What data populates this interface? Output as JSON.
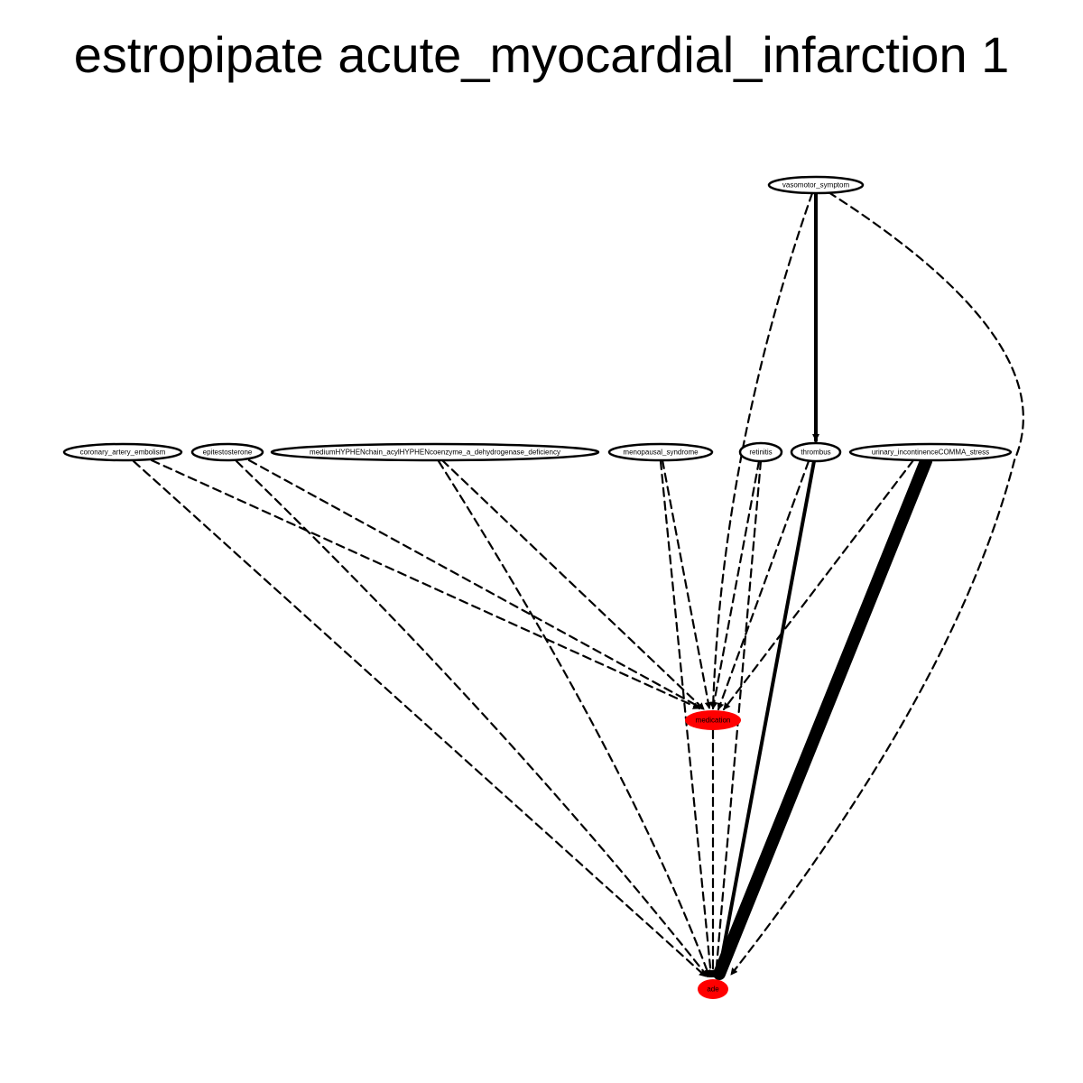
{
  "title": "estropipate acute_myocardial_infarction 1",
  "colors": {
    "outcome_fill": "#ff0000",
    "node_fill": "#ffffff",
    "edge": "#000000"
  },
  "nodes": [
    {
      "id": "vasomotor_symptom",
      "label": "vasomotor_symptom",
      "role": "covariate"
    },
    {
      "id": "coronary_artery_embolism",
      "label": "coronary_artery_embolism",
      "role": "covariate"
    },
    {
      "id": "epitestosterone",
      "label": "epitestosterone",
      "role": "covariate"
    },
    {
      "id": "mcad",
      "label": "mediumHYPHENchain_acylHYPHENcoenzyme_a_dehydrogenase_deficiency",
      "role": "covariate"
    },
    {
      "id": "menopausal_syndrome",
      "label": "menopausal_syndrome",
      "role": "covariate"
    },
    {
      "id": "retinitis",
      "label": "retinitis",
      "role": "covariate"
    },
    {
      "id": "thrombus",
      "label": "thrombus",
      "role": "covariate"
    },
    {
      "id": "urinary_incontinence",
      "label": "urinary_incontinenceCOMMA_stress",
      "role": "covariate"
    },
    {
      "id": "medication",
      "label": "medication",
      "role": "highlighted"
    },
    {
      "id": "ade",
      "label": "ade",
      "role": "highlighted"
    }
  ],
  "edges": [
    {
      "from": "vasomotor_symptom",
      "to": "thrombus",
      "style": "solid",
      "weight": 3
    },
    {
      "from": "vasomotor_symptom",
      "to": "medication",
      "style": "dashed",
      "weight": 1
    },
    {
      "from": "vasomotor_symptom",
      "to": "ade",
      "style": "dashed",
      "weight": 1
    },
    {
      "from": "coronary_artery_embolism",
      "to": "medication",
      "style": "dashed",
      "weight": 1
    },
    {
      "from": "coronary_artery_embolism",
      "to": "ade",
      "style": "dashed",
      "weight": 1
    },
    {
      "from": "epitestosterone",
      "to": "medication",
      "style": "dashed",
      "weight": 1
    },
    {
      "from": "epitestosterone",
      "to": "ade",
      "style": "dashed",
      "weight": 1
    },
    {
      "from": "mcad",
      "to": "medication",
      "style": "dashed",
      "weight": 1
    },
    {
      "from": "mcad",
      "to": "ade",
      "style": "dashed",
      "weight": 1
    },
    {
      "from": "menopausal_syndrome",
      "to": "medication",
      "style": "dashed",
      "weight": 1
    },
    {
      "from": "menopausal_syndrome",
      "to": "ade",
      "style": "dashed",
      "weight": 1
    },
    {
      "from": "retinitis",
      "to": "medication",
      "style": "dashed",
      "weight": 1
    },
    {
      "from": "retinitis",
      "to": "ade",
      "style": "dashed",
      "weight": 1
    },
    {
      "from": "thrombus",
      "to": "medication",
      "style": "dashed",
      "weight": 1
    },
    {
      "from": "thrombus",
      "to": "ade",
      "style": "solid",
      "weight": 3
    },
    {
      "from": "urinary_incontinence",
      "to": "medication",
      "style": "dashed",
      "weight": 1
    },
    {
      "from": "urinary_incontinence",
      "to": "ade",
      "style": "solid",
      "weight": 12
    },
    {
      "from": "medication",
      "to": "ade",
      "style": "dashed",
      "weight": 1
    }
  ]
}
